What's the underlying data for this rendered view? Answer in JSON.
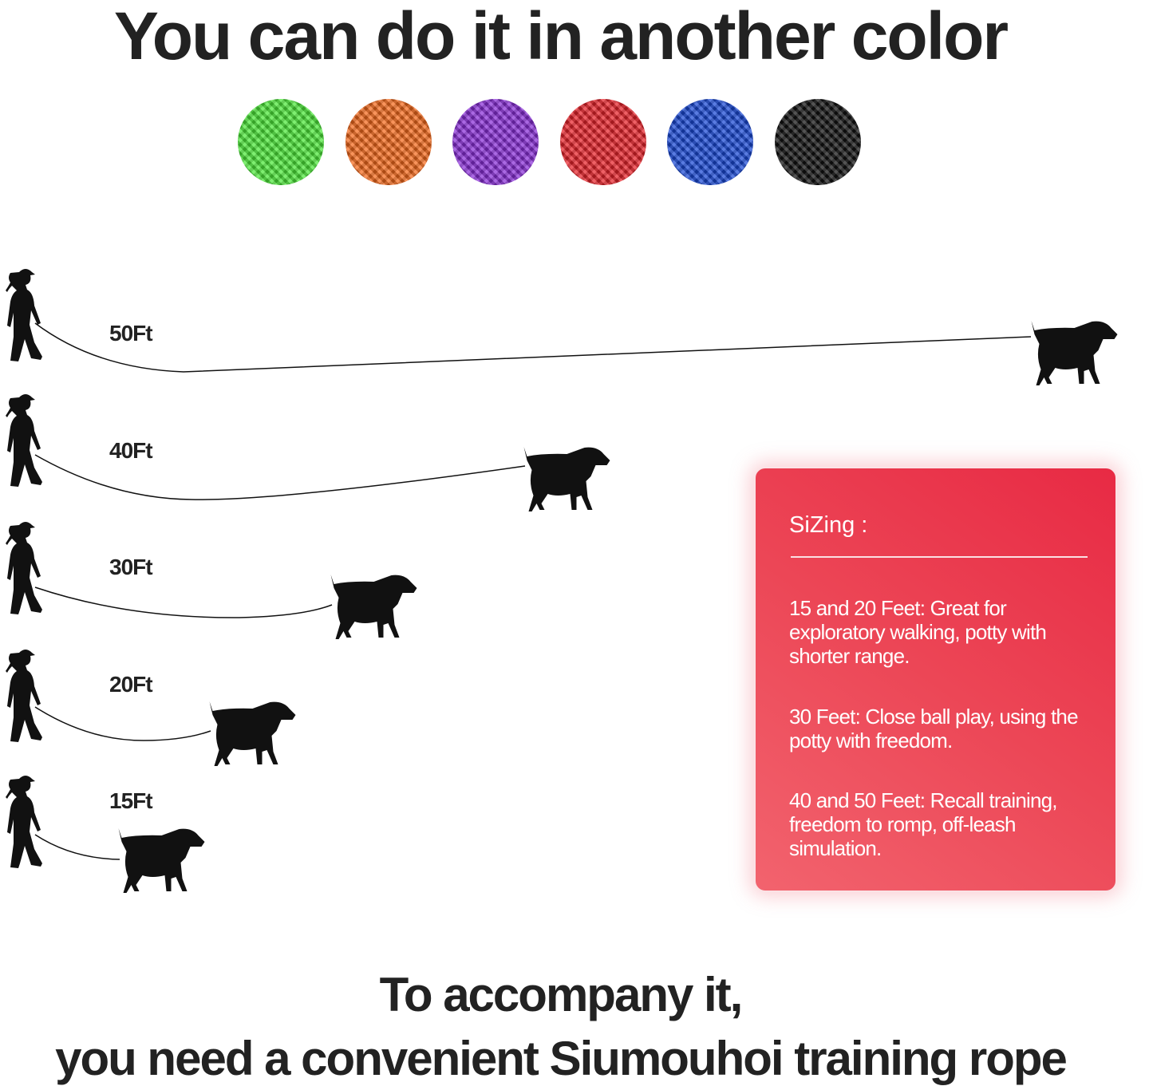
{
  "title": "You can do it in another color",
  "swatches": [
    {
      "name": "green",
      "color": "#4de83a"
    },
    {
      "name": "orange",
      "color": "#f56a1c"
    },
    {
      "name": "purple",
      "color": "#8a2fd8"
    },
    {
      "name": "red",
      "color": "#e8232a"
    },
    {
      "name": "blue",
      "color": "#1a49d6"
    },
    {
      "name": "black",
      "color": "#111111"
    }
  ],
  "lengths": [
    "50Ft",
    "40Ft",
    "30Ft",
    "20Ft",
    "15Ft"
  ],
  "sizing": {
    "title": "SiZing :",
    "items": [
      "15 and 20 Feet: Great for exploratory walking, potty with shorter range.",
      "30 Feet: Close ball play, using the potty with freedom.",
      "40 and 50 Feet: Recall training, freedom to romp, off-leash simulation."
    ],
    "accent": "#e8304a"
  },
  "bottom": {
    "line1": "To accompany it,",
    "line2": "you need a convenient Siumouhoi training rope"
  }
}
